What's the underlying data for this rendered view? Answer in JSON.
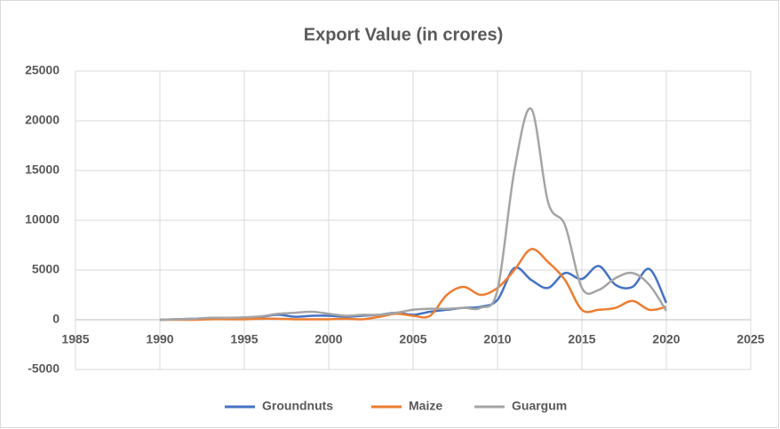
{
  "chart_data": {
    "type": "line",
    "title": "Export Value (in crores)",
    "x": [
      1990,
      1991,
      1992,
      1993,
      1994,
      1995,
      1996,
      1997,
      1998,
      1999,
      2000,
      2001,
      2002,
      2003,
      2004,
      2005,
      2006,
      2007,
      2008,
      2009,
      2010,
      2011,
      2012,
      2013,
      2014,
      2015,
      2016,
      2017,
      2018,
      2019,
      2020
    ],
    "series": [
      {
        "name": "Groundnuts",
        "color": "#4472c4",
        "values": [
          0,
          50,
          100,
          150,
          150,
          200,
          300,
          500,
          300,
          400,
          400,
          300,
          400,
          500,
          700,
          500,
          800,
          1000,
          1200,
          1300,
          2000,
          5200,
          4000,
          3200,
          4700,
          4100,
          5400,
          3500,
          3300,
          5100,
          1700
        ]
      },
      {
        "name": "Maize",
        "color": "#ed7d31",
        "values": [
          0,
          0,
          0,
          50,
          50,
          50,
          100,
          100,
          50,
          50,
          50,
          100,
          50,
          300,
          600,
          400,
          400,
          2500,
          3300,
          2500,
          3200,
          5000,
          7100,
          5800,
          4000,
          1000,
          1000,
          1200,
          1900,
          1000,
          1300
        ]
      },
      {
        "name": "Guargum",
        "color": "#a5a5a5",
        "values": [
          0,
          50,
          100,
          200,
          200,
          250,
          350,
          600,
          700,
          800,
          600,
          400,
          500,
          500,
          700,
          1000,
          1100,
          1100,
          1200,
          1200,
          3000,
          15000,
          21200,
          11800,
          9500,
          3200,
          3000,
          4200,
          4700,
          3500,
          900
        ]
      }
    ],
    "xlim": [
      1985,
      2025
    ],
    "xticks": [
      1985,
      1990,
      1995,
      2000,
      2005,
      2010,
      2015,
      2020,
      2025
    ],
    "ylim": [
      -5000,
      25000
    ],
    "yticks": [
      -5000,
      0,
      5000,
      10000,
      15000,
      20000,
      25000
    ],
    "grid": true,
    "legend": "bottom"
  }
}
